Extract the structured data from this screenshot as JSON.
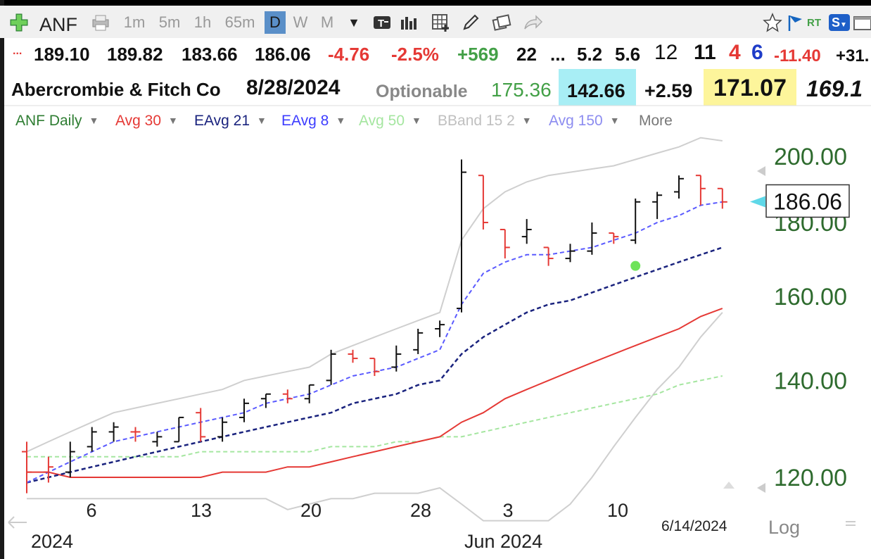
{
  "toolbar": {
    "symbol": "ANF",
    "periods": [
      "1m",
      "5m",
      "1h",
      "65m",
      "D",
      "W",
      "M"
    ],
    "active_period": "D",
    "icons": [
      "add-icon",
      "printer-icon",
      "dropdown-arrow-icon",
      "text-tool-icon",
      "bar-style-icon",
      "grid-icon",
      "pencil-icon",
      "windows-icon",
      "share-icon",
      "star-icon",
      "flag-icon",
      "rt-icon",
      "s-icon",
      "window-icon"
    ],
    "rt_label": "RT",
    "s_label": "S"
  },
  "quote_row1": {
    "dots": "...",
    "last": "189.10",
    "high": "189.82",
    "low": "183.66",
    "close": "186.06",
    "change": "-4.76",
    "change_pct": "-2.5%",
    "volume_change": "+569",
    "v1": "22",
    "ellipsis": "...",
    "v2": "5.2",
    "v3": "5.6",
    "v4": "12",
    "v5": "11",
    "v6": "4",
    "v7": "6",
    "v8": "-11.40",
    "v9": "+31."
  },
  "quote_row2": {
    "company": "Abercrombie & Fitch Co",
    "date": "8/28/2024",
    "optionable": "Optionable",
    "v1": "175.36",
    "v2": "142.66",
    "v3": "+2.59",
    "v4": "171.07",
    "v5": "169.1"
  },
  "studies": [
    {
      "label": "ANF Daily",
      "color": "#2e7d32"
    },
    {
      "label": "Avg 30",
      "color": "#e53935"
    },
    {
      "label": "EAvg 21",
      "color": "#1a237e"
    },
    {
      "label": "EAvg 8",
      "color": "#3d3dff"
    },
    {
      "label": "Avg 50",
      "color": "#a5e6a0"
    },
    {
      "label": "BBand 15 2",
      "color": "#c0c0c0"
    },
    {
      "label": "Avg 150",
      "color": "#8c8cf0"
    },
    {
      "label": "More",
      "color": "#777777"
    }
  ],
  "chart_data": {
    "type": "ohlc-bar",
    "symbol": "ANF",
    "interval": "Daily",
    "y_ticks": [
      "200.00",
      "180.00",
      "160.00",
      "140.00",
      "120.00"
    ],
    "x_ticks": [
      "6",
      "13",
      "20",
      "28",
      "3",
      "10"
    ],
    "x_month_labels": [
      "2024",
      "Jun 2024"
    ],
    "end_date_label": "6/14/2024",
    "current_price_label": "186.06",
    "scale_label": "Log",
    "bars": [
      {
        "o": 125,
        "h": 127,
        "l": 117,
        "c": 121,
        "up": false
      },
      {
        "o": 121,
        "h": 124,
        "l": 119,
        "c": 122,
        "up": false
      },
      {
        "o": 121,
        "h": 127,
        "l": 120,
        "c": 125,
        "up": true
      },
      {
        "o": 126,
        "h": 130,
        "l": 125,
        "c": 129,
        "up": true
      },
      {
        "o": 129,
        "h": 131,
        "l": 127,
        "c": 130,
        "up": true
      },
      {
        "o": 129,
        "h": 130,
        "l": 127,
        "c": 129,
        "up": false
      },
      {
        "o": 127,
        "h": 129,
        "l": 126,
        "c": 128,
        "up": true
      },
      {
        "o": 127,
        "h": 132,
        "l": 127,
        "c": 132,
        "up": true
      },
      {
        "o": 133,
        "h": 134,
        "l": 127,
        "c": 128,
        "up": false
      },
      {
        "o": 128,
        "h": 132,
        "l": 127,
        "c": 131,
        "up": true
      },
      {
        "o": 132,
        "h": 136,
        "l": 131,
        "c": 135,
        "up": true
      },
      {
        "o": 136,
        "h": 137,
        "l": 134,
        "c": 137,
        "up": true
      },
      {
        "o": 137,
        "h": 138,
        "l": 135,
        "c": 136,
        "up": false
      },
      {
        "o": 136,
        "h": 139,
        "l": 135,
        "c": 139,
        "up": true
      },
      {
        "o": 140,
        "h": 147,
        "l": 139,
        "c": 146,
        "up": true
      },
      {
        "o": 146,
        "h": 147,
        "l": 144,
        "c": 145,
        "up": false
      },
      {
        "o": 145,
        "h": 145,
        "l": 141,
        "c": 142,
        "up": false
      },
      {
        "o": 143,
        "h": 148,
        "l": 142,
        "c": 146,
        "up": true
      },
      {
        "o": 147,
        "h": 152,
        "l": 146,
        "c": 151,
        "up": true
      },
      {
        "o": 152,
        "h": 154,
        "l": 150,
        "c": 153,
        "up": true
      },
      {
        "o": 157,
        "h": 199,
        "l": 156,
        "c": 195,
        "up": true
      },
      {
        "o": 194,
        "h": 194,
        "l": 178,
        "c": 180,
        "up": false
      },
      {
        "o": 178,
        "h": 178,
        "l": 170,
        "c": 173,
        "up": false
      },
      {
        "o": 176,
        "h": 181,
        "l": 174,
        "c": 178,
        "up": true
      },
      {
        "o": 173,
        "h": 173,
        "l": 168,
        "c": 170,
        "up": false
      },
      {
        "o": 170,
        "h": 174,
        "l": 169,
        "c": 172,
        "up": true
      },
      {
        "o": 172,
        "h": 180,
        "l": 171,
        "c": 177,
        "up": true
      },
      {
        "o": 177,
        "h": 177,
        "l": 174,
        "c": 176,
        "up": false
      },
      {
        "o": 175,
        "h": 187,
        "l": 174,
        "c": 186,
        "up": true
      },
      {
        "o": 186,
        "h": 189,
        "l": 181,
        "c": 188,
        "up": true
      },
      {
        "o": 189,
        "h": 194,
        "l": 187,
        "c": 193,
        "up": true
      },
      {
        "o": 194,
        "h": 194,
        "l": 185,
        "c": 190,
        "up": false
      },
      {
        "o": 190,
        "h": 190,
        "l": 184,
        "c": 186,
        "up": false
      }
    ],
    "ema8": [
      119,
      121,
      123,
      125,
      127,
      128,
      129,
      130,
      131,
      132,
      133,
      135,
      136,
      137,
      139,
      141,
      142,
      143,
      145,
      147,
      158,
      166,
      169,
      171,
      171,
      172,
      173,
      175,
      177,
      180,
      182,
      185,
      186
    ],
    "ema21": [
      119,
      120,
      121,
      122,
      123,
      124,
      125,
      126,
      127,
      128,
      129,
      130,
      131,
      132,
      133,
      135,
      136,
      137,
      139,
      140,
      146,
      150,
      153,
      156,
      158,
      159,
      161,
      163,
      165,
      167,
      169,
      171,
      173
    ],
    "avg30": [
      121,
      121,
      120,
      120,
      120,
      120,
      120,
      120,
      120,
      121,
      121,
      121,
      122,
      122,
      123,
      124,
      125,
      126,
      127,
      128,
      131,
      133,
      136,
      138,
      140,
      142,
      144,
      146,
      148,
      150,
      152,
      155,
      157
    ],
    "avg50": [
      124,
      124,
      124,
      124,
      124,
      124,
      124,
      124,
      125,
      125,
      125,
      125,
      125,
      125,
      126,
      126,
      126,
      127,
      127,
      128,
      128,
      129,
      130,
      131,
      132,
      133,
      134,
      135,
      136,
      137,
      139,
      140,
      141
    ],
    "bb_upper": [
      125,
      127,
      129,
      131,
      133,
      134,
      135,
      136,
      137,
      138,
      140,
      141,
      142,
      143,
      146,
      148,
      150,
      152,
      154,
      156,
      175,
      184,
      189,
      192,
      194,
      195,
      196,
      197,
      199,
      201,
      203,
      206,
      205
    ],
    "bb_lower": [
      116,
      116,
      116,
      116,
      116,
      116,
      116,
      116,
      116,
      116,
      116,
      116,
      114,
      115,
      116,
      116,
      117,
      117,
      117,
      118,
      115,
      112,
      112,
      112,
      112,
      115,
      120,
      126,
      132,
      138,
      143,
      150,
      156
    ],
    "signal_dot": {
      "index": 28,
      "price": 168
    }
  }
}
